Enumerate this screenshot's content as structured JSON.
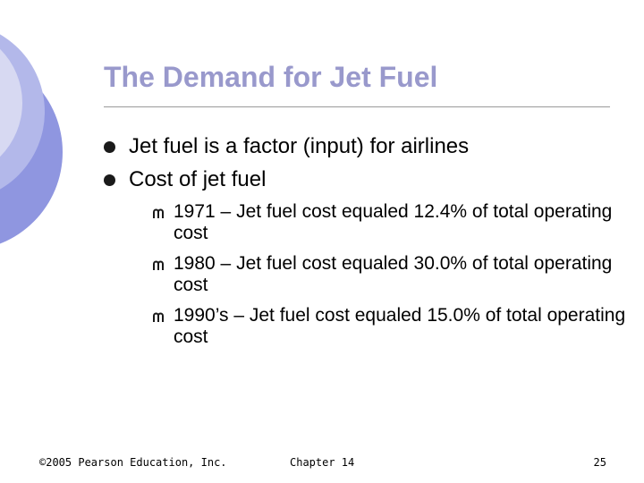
{
  "slide": {
    "title": "The Demand for Jet Fuel",
    "bullets": [
      {
        "text": "Jet fuel is a factor (input) for airlines"
      },
      {
        "text": "Cost of jet fuel"
      }
    ],
    "sub_bullets": [
      {
        "text": "1971 – Jet fuel cost equaled 12.4% of total operating cost"
      },
      {
        "text": "1980 – Jet fuel cost equaled 30.0% of total operating cost"
      },
      {
        "text": "1990’s – Jet fuel cost equaled 15.0% of total operating cost"
      }
    ]
  },
  "footer": {
    "copyright": "©2005 Pearson Education, Inc.",
    "chapter": "Chapter 14",
    "page_number": "25"
  },
  "colors": {
    "title": "#9999cc",
    "deco_light": "#d7d9f2",
    "deco_mid": "#b3b8ea",
    "deco_dark": "#8f96e0",
    "rule": "#9a9a9a"
  }
}
